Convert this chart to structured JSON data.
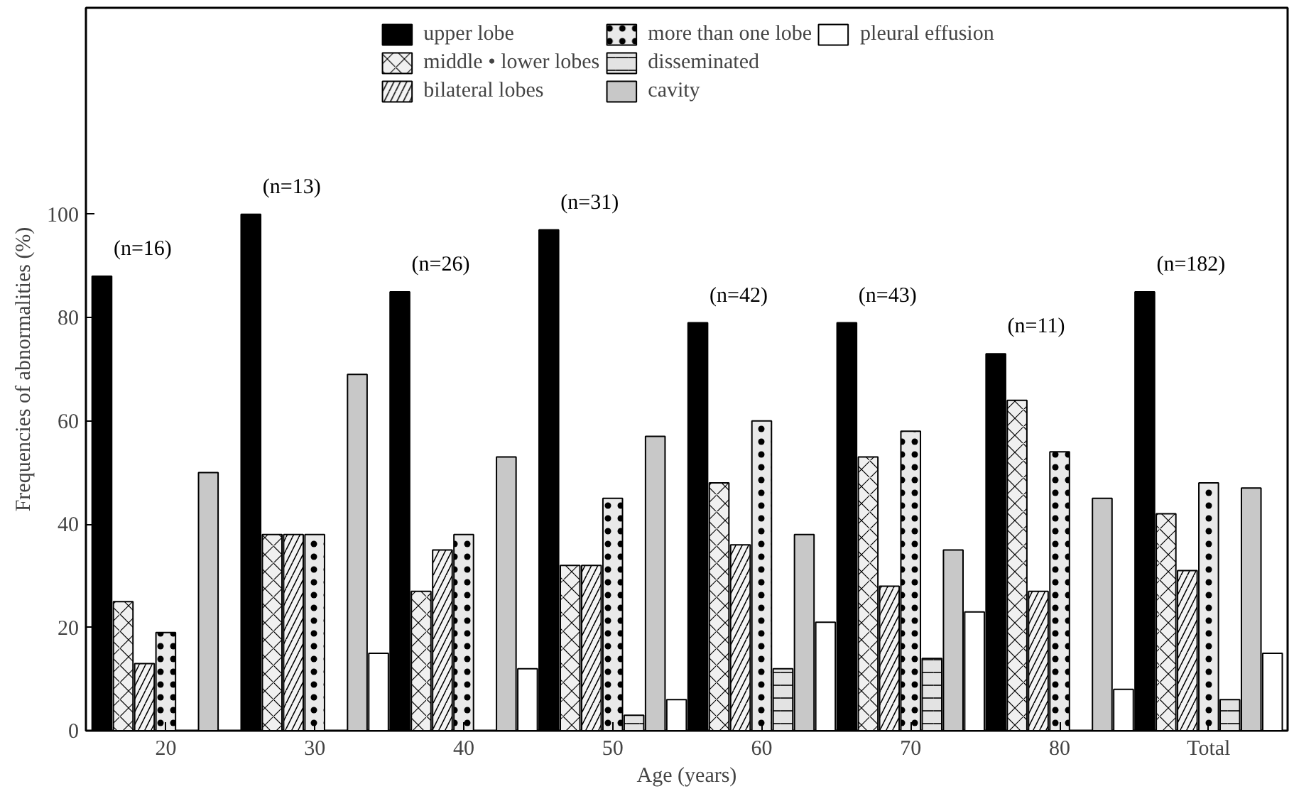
{
  "chart_data": {
    "type": "bar",
    "xlabel": "Age (years)",
    "ylabel": "Frequencies of abnormalities (%)",
    "categories": [
      "20",
      "30",
      "40",
      "50",
      "60",
      "70",
      "80",
      "Total"
    ],
    "series": [
      {
        "name": "upper lobe",
        "color": "#000000",
        "values": [
          88,
          100,
          85,
          97,
          79,
          79,
          73,
          85
        ]
      },
      {
        "name": "middle • lower lobes",
        "color": "#f0f0f0",
        "values": [
          25,
          38,
          27,
          32,
          48,
          53,
          64,
          42
        ]
      },
      {
        "name": "bilateral lobes",
        "color": "#f4f4f4",
        "values": [
          13,
          38,
          35,
          32,
          36,
          28,
          27,
          31
        ]
      },
      {
        "name": "more than one lobe",
        "color": "#e9e9e9",
        "values": [
          19,
          38,
          38,
          45,
          60,
          58,
          54,
          48
        ]
      },
      {
        "name": "disseminated",
        "color": "#e3e3e3",
        "values": [
          null,
          null,
          null,
          3,
          12,
          14,
          null,
          6
        ]
      },
      {
        "name": "cavity",
        "color": "#c8c8c8",
        "values": [
          50,
          69,
          53,
          57,
          38,
          35,
          45,
          47
        ]
      },
      {
        "name": "pleural effusion",
        "color": "#ffffff",
        "values": [
          null,
          15,
          12,
          6,
          21,
          23,
          8,
          15
        ]
      }
    ],
    "ylim": [
      0,
      140
    ],
    "yticks": [
      0,
      20,
      40,
      60,
      80,
      100
    ],
    "legend": "top",
    "grid": false,
    "annotations": [
      "(n=16)",
      "(n=13)",
      "(n=26)",
      "(n=31)",
      "(n=42)",
      "(n=43)",
      "(n=11)",
      "(n=182)"
    ]
  }
}
